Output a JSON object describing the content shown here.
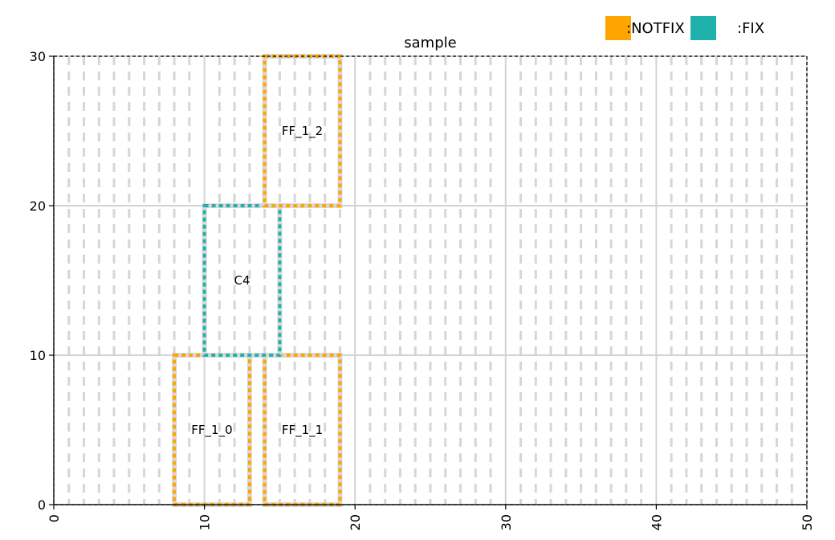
{
  "chart_data": {
    "type": "placement",
    "title": "sample",
    "xlim": [
      0,
      50
    ],
    "ylim": [
      0,
      30
    ],
    "x_ticks": [
      0,
      10,
      20,
      30,
      40,
      50
    ],
    "y_ticks": [
      0,
      10,
      20,
      30
    ],
    "x_tick_labels": [
      "0",
      "10",
      "20",
      "30",
      "40",
      "50"
    ],
    "y_tick_labels": [
      "0",
      "10",
      "20",
      "30"
    ],
    "major_grid": true,
    "minor_dashed_columns_step": 1,
    "legend": [
      {
        "label": ":NOTFIX",
        "color": "#FFA500"
      },
      {
        "label": ":FIX",
        "color": "#20B2AA"
      }
    ],
    "blocks": [
      {
        "label": "FF_1_0",
        "x0": 8,
        "x1": 13,
        "y0": 0,
        "y1": 10,
        "status": "NOTFIX"
      },
      {
        "label": "FF_1_1",
        "x0": 14,
        "x1": 19,
        "y0": 0,
        "y1": 10,
        "status": "NOTFIX"
      },
      {
        "label": "C4",
        "x0": 10,
        "x1": 15,
        "y0": 10,
        "y1": 20,
        "status": "FIX"
      },
      {
        "label": "FF_1_2",
        "x0": 14,
        "x1": 19,
        "y0": 20,
        "y1": 30,
        "status": "NOTFIX"
      }
    ]
  },
  "colors": {
    "notfix": "#FFA500",
    "fix": "#20B2AA",
    "grid": "#d3d3d3",
    "inner_dash": "#d6d6d6"
  }
}
